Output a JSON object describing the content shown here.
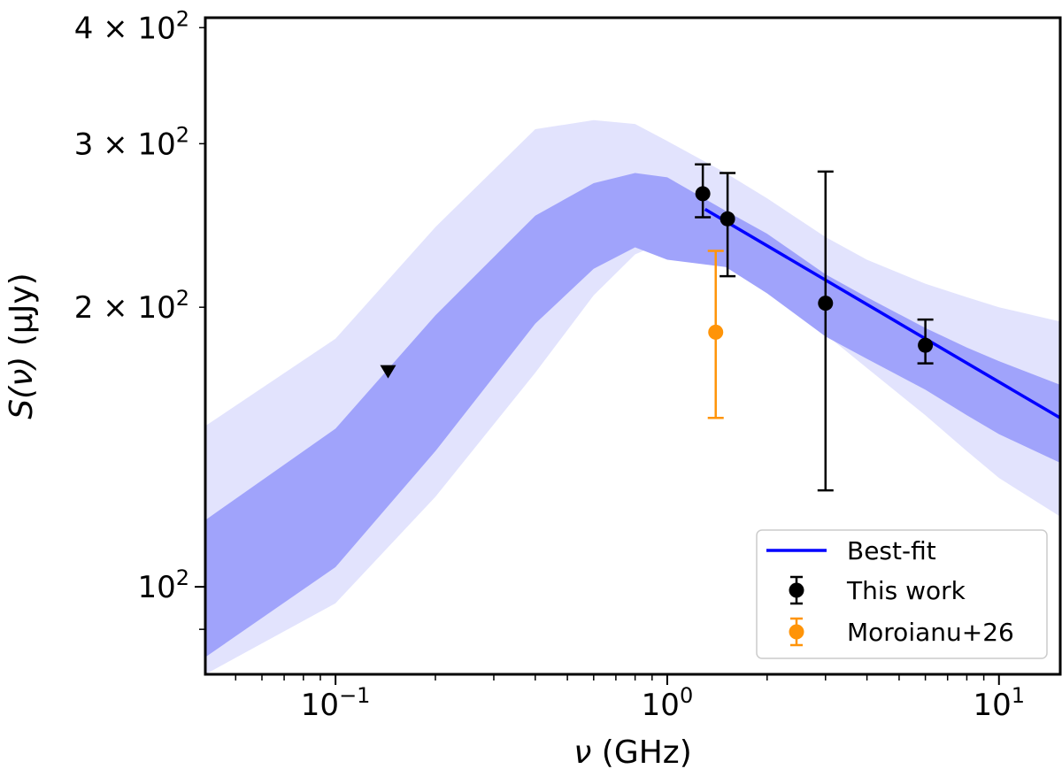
{
  "chart_data": {
    "type": "scatter",
    "xlabel_symbol": "ν",
    "xlabel_unit": " (GHz)",
    "ylabel_symbol": "S(ν)",
    "ylabel_unit": " (μJy)",
    "x_scale": "log",
    "y_scale": "log",
    "xlim": [
      0.0405,
      15.3
    ],
    "ylim": [
      80.5,
      410
    ],
    "grid": false,
    "legend_position": "bottom-right",
    "x_ticks": [
      {
        "value": 0.1,
        "base": "10",
        "exp": "−1"
      },
      {
        "value": 1,
        "base": "10",
        "exp": "0"
      },
      {
        "value": 10,
        "base": "10",
        "exp": "1"
      }
    ],
    "y_ticks": [
      {
        "value": 100,
        "mant": "",
        "base": "10",
        "exp": "2"
      },
      {
        "value": 200,
        "mant": "2 × ",
        "base": "10",
        "exp": "2"
      },
      {
        "value": 300,
        "mant": "3 × ",
        "base": "10",
        "exp": "2"
      },
      {
        "value": 400,
        "mant": "4 × ",
        "base": "10",
        "exp": "2"
      }
    ],
    "bands": {
      "inner_color": "#a0a3fb",
      "outer_color": "#e2e3fd",
      "x": [
        0.0405,
        0.1,
        0.2,
        0.4,
        0.6,
        0.8,
        1.0,
        1.5,
        2.0,
        3.0,
        4.0,
        6.0,
        8.0,
        10.0,
        15.3
      ],
      "outer_lower": [
        75,
        96,
        125,
        170,
        206,
        228,
        236,
        224,
        211,
        187,
        172,
        153,
        140,
        131,
        119
      ],
      "inner_lower": [
        84,
        105,
        140,
        192,
        220,
        232,
        225,
        221,
        207,
        186,
        176,
        163,
        153,
        146,
        136
      ],
      "inner_upper": [
        118,
        148,
        196,
        251,
        272,
        279,
        276,
        254,
        240,
        217,
        205,
        190,
        181,
        175,
        165
      ],
      "outer_upper": [
        149,
        185,
        244,
        311,
        318,
        315,
        302,
        279,
        262,
        238,
        225,
        212,
        205,
        200,
        193
      ]
    },
    "series": [
      {
        "name": "Best-fit",
        "kind": "line",
        "color": "#0000ff",
        "x": [
          1.3,
          15.3
        ],
        "y": [
          255,
          152
        ]
      },
      {
        "name": "This work",
        "kind": "points",
        "color": "#000000",
        "x": [
          1.28,
          1.52,
          3.0,
          6.0
        ],
        "y": [
          265,
          249,
          202,
          182
        ],
        "y_low": [
          250,
          216,
          127,
          174
        ],
        "y_high": [
          285,
          279,
          280,
          194
        ]
      },
      {
        "name": "Moroianu+26",
        "kind": "points",
        "color": "#ff9408",
        "x": [
          1.4
        ],
        "y": [
          188
        ],
        "y_low": [
          152
        ],
        "y_high": [
          230
        ]
      }
    ],
    "upper_limits": [
      {
        "x": 0.144,
        "y": 171,
        "marker": "down-triangle",
        "color": "#000000"
      }
    ]
  }
}
